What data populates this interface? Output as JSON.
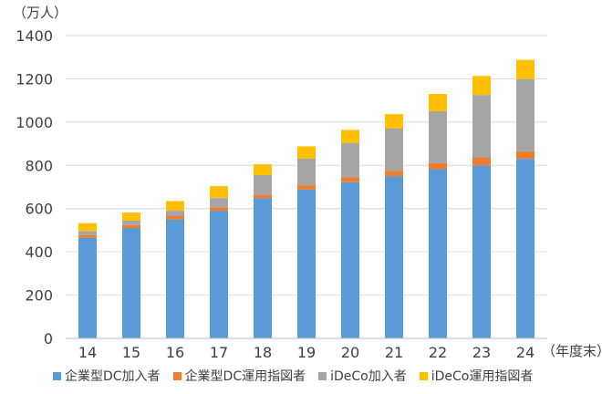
{
  "chart_data": {
    "type": "bar",
    "stacked": true,
    "y_unit": "（万人）",
    "x_unit": "（年度末）",
    "categories": [
      "14",
      "15",
      "16",
      "17",
      "18",
      "19",
      "20",
      "21",
      "22",
      "23",
      "24"
    ],
    "ylim": [
      0,
      1400
    ],
    "yticks": [
      0,
      200,
      400,
      600,
      800,
      1000,
      1200,
      1400
    ],
    "grid": true,
    "legend_position": "bottom",
    "series": [
      {
        "name": "企業型DC加入者",
        "color": "#5B9BD5",
        "values": [
          465,
          510,
          550,
          590,
          648,
          688,
          722,
          750,
          782,
          800,
          830
        ]
      },
      {
        "name": "企業型DC運用指図者",
        "color": "#ED7D31",
        "values": [
          12,
          14,
          15,
          16,
          17,
          20,
          22,
          25,
          28,
          35,
          35
        ]
      },
      {
        "name": "iDeCo加入者",
        "color": "#A5A5A5",
        "values": [
          18,
          20,
          25,
          43,
          90,
          123,
          160,
          195,
          240,
          290,
          333
        ]
      },
      {
        "name": "iDeCo運用指図者",
        "color": "#FFC000",
        "values": [
          38,
          38,
          45,
          55,
          50,
          57,
          60,
          67,
          80,
          88,
          90
        ]
      }
    ]
  }
}
